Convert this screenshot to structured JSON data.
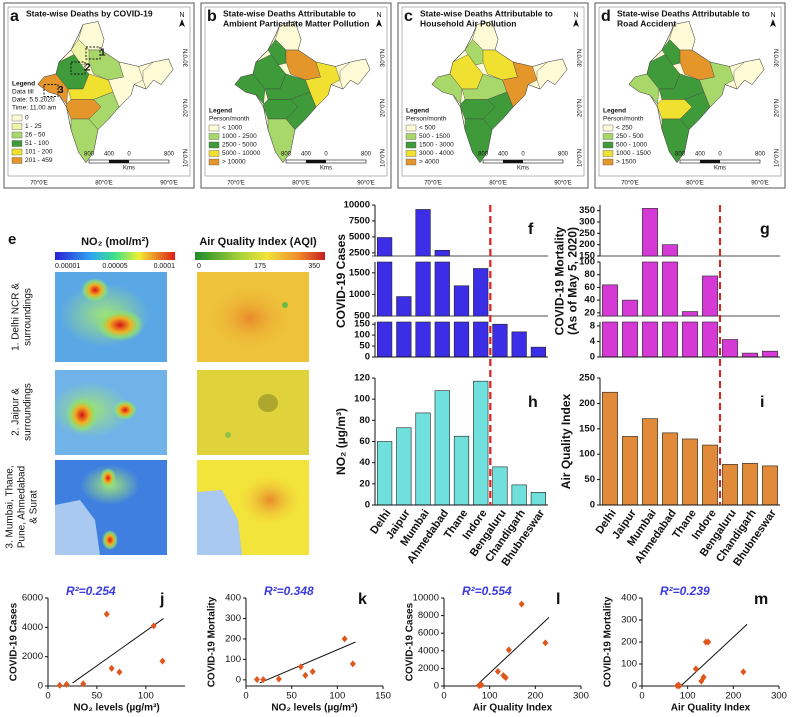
{
  "maps": {
    "lon_labels": [
      "70°0'E",
      "80°0'E",
      "90°0'E"
    ],
    "lat_labels": [
      "30°0'N",
      "20°0'N",
      "10°0'N"
    ],
    "north": "N",
    "scale_labels": [
      "800",
      "400",
      "0",
      "800"
    ],
    "scale_unit": "Kms",
    "panels": [
      {
        "letter": "a",
        "title": [
          "State-wise Deaths by COVID-19"
        ],
        "legend": [
          "Legend",
          "Data till",
          "Date: 5.5.2020",
          "Time: 11.00 am"
        ],
        "items": [
          {
            "label": "0",
            "color": "#fffbd6"
          },
          {
            "label": "1 - 25",
            "color": "#eef3a8"
          },
          {
            "label": "26 - 50",
            "color": "#a9d86a"
          },
          {
            "label": "51 - 100",
            "color": "#3f9a3a"
          },
          {
            "label": "101 - 200",
            "color": "#f0e030"
          },
          {
            "label": "201 - 459",
            "color": "#e5962a"
          }
        ],
        "boxes": [
          "1",
          "2",
          "3"
        ]
      },
      {
        "letter": "b",
        "title": [
          "State-wise Deaths Attributable to",
          "Ambient Particulate Matter Pollution"
        ],
        "legend": [
          "Legend",
          "Person/month"
        ],
        "items": [
          {
            "label": "< 1000",
            "color": "#fffbd6"
          },
          {
            "label": "1000 - 2500",
            "color": "#a9d86a"
          },
          {
            "label": "2500 - 5000",
            "color": "#3f9a3a"
          },
          {
            "label": "5000 - 10000",
            "color": "#f0e030"
          },
          {
            "label": "> 10000",
            "color": "#e5962a"
          }
        ]
      },
      {
        "letter": "c",
        "title": [
          "State-wise Deaths Attributable to",
          "Household Air Pollution"
        ],
        "legend": [
          "Legend",
          "Person/month"
        ],
        "items": [
          {
            "label": "< 500",
            "color": "#fffbd6"
          },
          {
            "label": "500 - 1500",
            "color": "#a9d86a"
          },
          {
            "label": "1500 - 3000",
            "color": "#3f9a3a"
          },
          {
            "label": "3000 - 4000",
            "color": "#f0e030"
          },
          {
            "label": "> 4000",
            "color": "#e5962a"
          }
        ]
      },
      {
        "letter": "d",
        "title": [
          "State-wise Deaths Attributable to",
          "Road Accident"
        ],
        "legend": [
          "Legend",
          "Person/month"
        ],
        "items": [
          {
            "label": "< 250",
            "color": "#fffbd6"
          },
          {
            "label": "250 - 500",
            "color": "#a9d86a"
          },
          {
            "label": "500 - 1000",
            "color": "#3f9a3a"
          },
          {
            "label": "1000 - 1500",
            "color": "#f0e030"
          },
          {
            "label": "> 1500",
            "color": "#e5962a"
          }
        ]
      }
    ]
  },
  "panel_e": {
    "letter": "e",
    "no2_title": "NO₂ (mol/m²)",
    "no2_scale": [
      "0.00001",
      "0.00005",
      "0.0001"
    ],
    "aqi_title": "Air Quality Index (AQI)",
    "aqi_scale": [
      "0",
      "175",
      "350"
    ],
    "rows": [
      [
        "1. Delhi NCR &",
        "surroundings"
      ],
      [
        "2. Jaipur &",
        "surroundings"
      ],
      [
        "3. Mumbai, Thane,",
        "Pune, Ahmedabad",
        "& Surat"
      ]
    ]
  },
  "chart_data": [
    {
      "type": "bar",
      "panel": "f",
      "y_label": [
        "COVID-19 Cases"
      ],
      "color": "#3b2ee6",
      "values": [
        4900,
        950,
        9300,
        2900,
        1200,
        1600,
        150,
        115,
        45
      ],
      "segments": [
        {
          "ylim": [
            0,
            160
          ],
          "yticks": [
            0,
            50,
            100,
            150
          ]
        },
        {
          "ylim": [
            500,
            1750
          ],
          "yticks": [
            500,
            1000,
            1500
          ]
        },
        {
          "ylim": [
            2000,
            10000
          ],
          "yticks": [
            2500,
            5000,
            7500,
            10000
          ]
        }
      ]
    },
    {
      "type": "bar",
      "panel": "g",
      "y_label": [
        "COVID-19 Mortality",
        "(As of May 5, 2020)"
      ],
      "color": "#d63ad6",
      "values": [
        64,
        40,
        360,
        200,
        22,
        78,
        4.5,
        1,
        1.5
      ],
      "segments": [
        {
          "ylim": [
            0,
            9
          ],
          "yticks": [
            0,
            4,
            8
          ]
        },
        {
          "ylim": [
            15,
            100
          ],
          "yticks": [
            20,
            40,
            60,
            80,
            100
          ]
        },
        {
          "ylim": [
            150,
            375
          ],
          "yticks": [
            150,
            200,
            250,
            300,
            350
          ]
        }
      ]
    },
    {
      "type": "bar",
      "panel": "h",
      "y_label": [
        "NO₂ (µg/m³)"
      ],
      "color": "#6fe0dc",
      "categories": [
        "Delhi",
        "Jaipur",
        "Mumbai",
        "Ahmedabad",
        "Thane",
        "Indore",
        "Bengaluru",
        "Chandigarh",
        "Bhubneswar"
      ],
      "values": [
        60,
        73,
        87,
        108,
        65,
        117,
        36,
        19,
        12
      ],
      "ylim": [
        0,
        120
      ],
      "yticks": [
        0,
        20,
        40,
        60,
        80,
        100,
        120
      ]
    },
    {
      "type": "bar",
      "panel": "i",
      "y_label": [
        "Air Quality Index"
      ],
      "color": "#e08a3a",
      "categories": [
        "Delhi",
        "Jaipur",
        "Mumbai",
        "Ahmedabad",
        "Thane",
        "Indore",
        "Bengaluru",
        "Chandigarh",
        "Bhubneswar"
      ],
      "values": [
        222,
        135,
        170,
        142,
        130,
        118,
        80,
        82,
        77
      ],
      "ylim": [
        0,
        250
      ],
      "yticks": [
        0,
        50,
        100,
        150,
        200,
        250
      ]
    },
    {
      "type": "scatter",
      "panel": "j",
      "annotation": "R²=0.254",
      "x_label": "NO₂ levels (µg/m³)",
      "y_label": "COVID-19 Cases",
      "color": "#e0561c",
      "x": [
        12,
        19,
        36,
        60,
        65,
        73,
        108,
        117
      ],
      "y": [
        45,
        115,
        150,
        4900,
        1200,
        950,
        4100,
        1700
      ],
      "xlim": [
        0,
        140
      ],
      "xticks": [
        0,
        50,
        100
      ],
      "ylim": [
        0,
        6000
      ],
      "yticks": [
        0,
        2000,
        4000,
        6000
      ],
      "fit_line": {
        "x": [
          25,
          118
        ],
        "y": [
          200,
          4600
        ]
      }
    },
    {
      "type": "scatter",
      "panel": "k",
      "annotation": "R²=0.348",
      "x_label": "NO₂ levels (µg/m³)",
      "y_label": "COVID-19 Mortality",
      "color": "#e0561c",
      "x": [
        12,
        19,
        36,
        60,
        65,
        73,
        108,
        117
      ],
      "y": [
        2,
        1,
        4,
        64,
        22,
        40,
        200,
        78
      ],
      "xlim": [
        0,
        150
      ],
      "xticks": [
        0,
        50,
        100,
        150
      ],
      "ylim": [
        -30,
        400
      ],
      "yticks": [
        0,
        100,
        200,
        300,
        400
      ],
      "fit_line": {
        "x": [
          15,
          120
        ],
        "y": [
          -15,
          185
        ]
      }
    },
    {
      "type": "scatter",
      "panel": "l",
      "annotation": "R²=0.554",
      "x_label": "Air Quality Index",
      "y_label": "COVID-19 Cases",
      "color": "#e0561c",
      "x": [
        77,
        80,
        82,
        118,
        130,
        135,
        142,
        222,
        170
      ],
      "y": [
        45,
        150,
        115,
        1650,
        1200,
        950,
        4100,
        4900,
        9300
      ],
      "xlim": [
        0,
        300
      ],
      "xticks": [
        0,
        100,
        200,
        300
      ],
      "ylim": [
        0,
        10000
      ],
      "yticks": [
        0,
        2000,
        4000,
        6000,
        8000,
        10000
      ],
      "fit_line": {
        "x": [
          70,
          230
        ],
        "y": [
          0,
          7800
        ]
      }
    },
    {
      "type": "scatter",
      "panel": "m",
      "annotation": "R²=0.239",
      "x_label": "Air Quality Index",
      "y_label": "COVID-19 Mortality",
      "color": "#e0561c",
      "x": [
        77,
        80,
        82,
        118,
        130,
        135,
        140,
        145,
        222
      ],
      "y": [
        1,
        4,
        1,
        78,
        22,
        40,
        200,
        200,
        64
      ],
      "xlim": [
        0,
        300
      ],
      "xticks": [
        0,
        100,
        200,
        300
      ],
      "ylim": [
        0,
        400
      ],
      "yticks": [
        0,
        100,
        200,
        300,
        400
      ],
      "fit_line": {
        "x": [
          85,
          230
        ],
        "y": [
          0,
          280
        ]
      }
    }
  ]
}
